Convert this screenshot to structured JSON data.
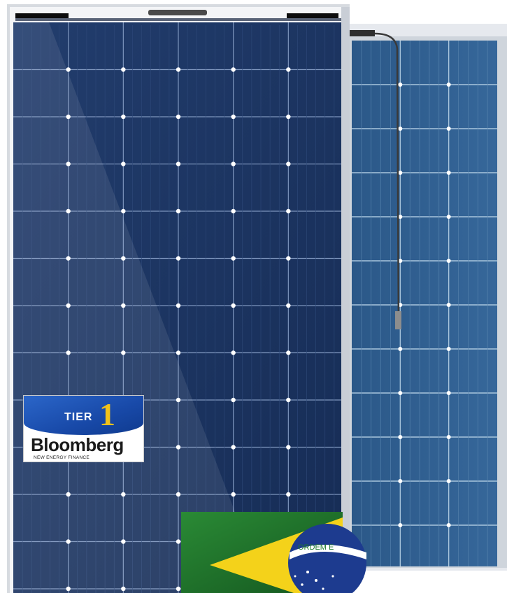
{
  "scene": {
    "subject": "Two monocrystalline solar panels with certification badge and flag",
    "colors": {
      "frame": "#c9ced6",
      "front_cells": "#1c3563",
      "front_grid": "#8aa2c8",
      "back_cells": "#2f5f8f",
      "back_grid": "#a9c6dd",
      "background": "#ffffff"
    }
  },
  "badge": {
    "tier_label": "TIER",
    "tier_number": "1",
    "brand": "Bloomberg",
    "subtitle": "NEW ENERGY FINANCE"
  },
  "flag": {
    "motto": "ORDEM E",
    "colors": {
      "green": "#1f7a2e",
      "yellow": "#f4d21a",
      "blue": "#1d3b8f"
    }
  }
}
